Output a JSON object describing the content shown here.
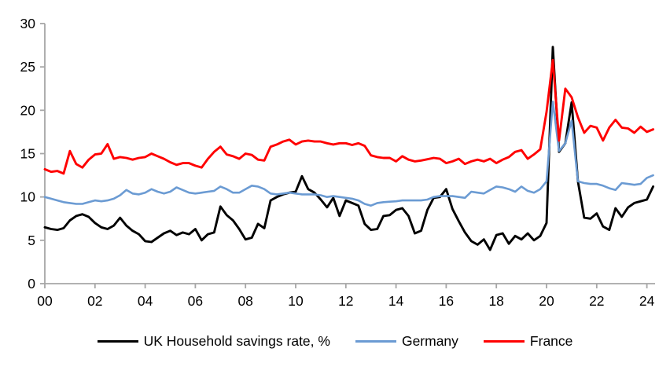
{
  "chart_data": {
    "type": "line",
    "frequency": "quarterly",
    "x_start_year": 2000,
    "x_tick_labels": [
      "00",
      "02",
      "04",
      "06",
      "08",
      "10",
      "12",
      "14",
      "16",
      "18",
      "20",
      "22",
      "24"
    ],
    "x_tick_years": [
      2000,
      2002,
      2004,
      2006,
      2008,
      2010,
      2012,
      2014,
      2016,
      2018,
      2020,
      2022,
      2024
    ],
    "y_ticks": [
      0,
      5,
      10,
      15,
      20,
      25,
      30
    ],
    "ylim": [
      0,
      30
    ],
    "xlim_years": [
      2000,
      2024.5
    ],
    "grid": false,
    "legend_position": "bottom",
    "axis_color": "#a6a6a6",
    "tick_label_color": "#000000",
    "series": [
      {
        "name": "UK Household savings rate, %",
        "color": "#000000",
        "values": [
          6.5,
          6.3,
          6.2,
          6.4,
          7.3,
          7.8,
          8.0,
          7.7,
          7.0,
          6.5,
          6.3,
          6.7,
          7.6,
          6.7,
          6.1,
          5.7,
          4.9,
          4.8,
          5.3,
          5.8,
          6.1,
          5.6,
          5.9,
          5.7,
          6.3,
          5.0,
          5.7,
          5.9,
          8.9,
          7.9,
          7.3,
          6.3,
          5.1,
          5.3,
          6.9,
          6.4,
          9.6,
          10.0,
          10.3,
          10.5,
          10.6,
          12.4,
          10.9,
          10.5,
          9.7,
          8.8,
          9.9,
          7.8,
          9.6,
          9.3,
          9.0,
          6.9,
          6.2,
          6.3,
          7.8,
          7.9,
          8.5,
          8.7,
          7.8,
          5.8,
          6.1,
          8.5,
          9.9,
          10.0,
          10.9,
          8.6,
          7.2,
          5.9,
          4.9,
          4.5,
          5.1,
          3.9,
          5.6,
          5.8,
          4.6,
          5.5,
          5.1,
          5.8,
          5.0,
          5.5,
          7.0,
          27.3,
          15.2,
          16.2,
          20.9,
          11.8,
          7.6,
          7.5,
          8.1,
          6.6,
          6.2,
          8.7,
          7.7,
          8.8,
          9.3,
          9.5,
          9.7,
          11.2
        ]
      },
      {
        "name": "Germany",
        "color": "#6b9bd3",
        "values": [
          10.0,
          9.8,
          9.6,
          9.4,
          9.3,
          9.2,
          9.2,
          9.4,
          9.6,
          9.5,
          9.6,
          9.8,
          10.2,
          10.8,
          10.4,
          10.3,
          10.5,
          10.9,
          10.6,
          10.4,
          10.6,
          11.1,
          10.8,
          10.5,
          10.4,
          10.5,
          10.6,
          10.7,
          11.2,
          10.9,
          10.5,
          10.5,
          10.9,
          11.3,
          11.2,
          10.9,
          10.4,
          10.3,
          10.4,
          10.5,
          10.4,
          10.3,
          10.3,
          10.3,
          10.2,
          10.0,
          10.1,
          10.0,
          9.9,
          9.8,
          9.6,
          9.2,
          9.0,
          9.3,
          9.4,
          9.45,
          9.5,
          9.6,
          9.6,
          9.6,
          9.6,
          9.7,
          10.0,
          10.1,
          10.1,
          10.1,
          10.0,
          9.9,
          10.6,
          10.5,
          10.4,
          10.8,
          11.2,
          11.1,
          10.9,
          10.6,
          11.2,
          10.7,
          10.5,
          10.9,
          11.8,
          21.0,
          15.3,
          16.2,
          18.8,
          11.8,
          11.6,
          11.5,
          11.5,
          11.3,
          11.0,
          10.8,
          11.6,
          11.5,
          11.4,
          11.5,
          12.2,
          12.5
        ]
      },
      {
        "name": "France",
        "color": "#ff0000",
        "values": [
          13.2,
          12.9,
          13.0,
          12.7,
          15.3,
          13.8,
          13.4,
          14.3,
          14.9,
          15.0,
          16.1,
          14.4,
          14.6,
          14.5,
          14.3,
          14.5,
          14.6,
          15.0,
          14.7,
          14.4,
          14.0,
          13.7,
          13.9,
          13.9,
          13.6,
          13.4,
          14.4,
          15.2,
          15.8,
          14.9,
          14.7,
          14.4,
          15.0,
          14.85,
          14.3,
          14.2,
          15.8,
          16.05,
          16.4,
          16.6,
          16.05,
          16.4,
          16.5,
          16.4,
          16.4,
          16.2,
          16.05,
          16.2,
          16.2,
          16.0,
          16.2,
          15.9,
          14.8,
          14.6,
          14.5,
          14.5,
          14.1,
          14.7,
          14.3,
          14.1,
          14.2,
          14.35,
          14.5,
          14.4,
          13.9,
          14.1,
          14.4,
          13.8,
          14.1,
          14.3,
          14.1,
          14.4,
          13.9,
          14.3,
          14.6,
          15.2,
          15.4,
          14.4,
          14.9,
          15.5,
          19.8,
          25.8,
          16.5,
          22.5,
          21.5,
          19.2,
          17.4,
          18.2,
          18.0,
          16.5,
          18.0,
          18.9,
          18.0,
          17.9,
          17.4,
          18.1,
          17.5,
          17.8
        ]
      }
    ]
  },
  "legend": {
    "uk_label": "UK Household savings rate, %",
    "germany_label": "Germany",
    "france_label": "France"
  }
}
